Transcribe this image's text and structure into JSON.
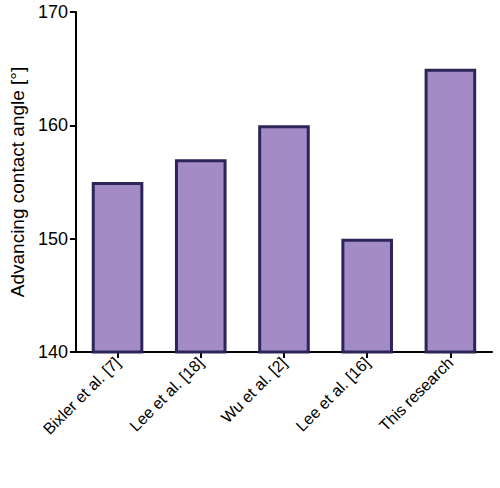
{
  "chart_data": {
    "type": "bar",
    "y_label": "Advancing contact angle [°]",
    "categories": [
      "Bixler et al. [7]",
      "Lee et al. [18]",
      "Wu et al. [2]",
      "Lee et al. [16]",
      "This research"
    ],
    "values": [
      155,
      157,
      160,
      150,
      165
    ],
    "color": "#a38cc6",
    "ylim": [
      140,
      170
    ],
    "yticks": [
      140,
      150,
      160,
      170
    ],
    "grid": false
  }
}
